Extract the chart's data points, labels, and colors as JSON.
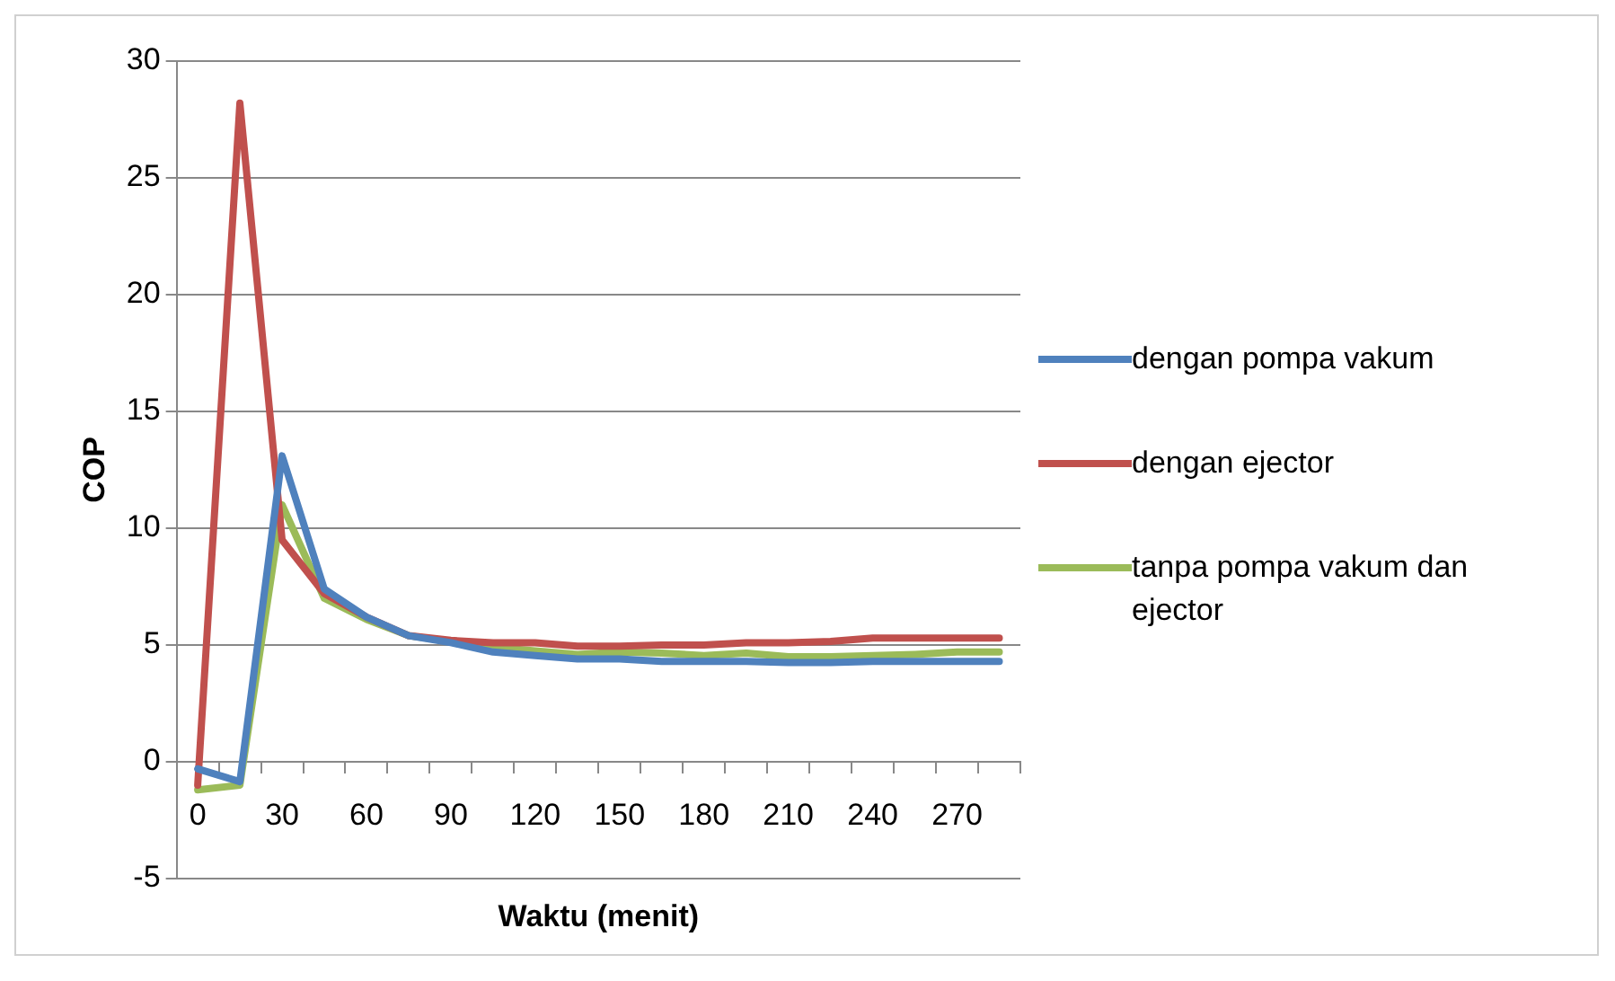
{
  "chart_data": {
    "type": "line",
    "xlabel": "Waktu (menit)",
    "ylabel": "COP",
    "categories": [
      "0",
      null,
      "30",
      null,
      "60",
      null,
      "90",
      null,
      "120",
      null,
      "150",
      null,
      "180",
      null,
      "210",
      null,
      "240",
      null,
      "270",
      null
    ],
    "series": [
      {
        "name": "dengan pompa vakum",
        "color": "#4f81bd",
        "values": [
          -0.3,
          -0.85,
          13.1,
          7.4,
          6.2,
          5.4,
          5.1,
          4.7,
          4.55,
          4.4,
          4.4,
          4.3,
          4.3,
          4.3,
          4.25,
          4.25,
          4.3,
          4.3,
          4.3,
          4.3
        ]
      },
      {
        "name": "dengan ejector",
        "color": "#c0504d",
        "values": [
          -1.0,
          28.2,
          9.5,
          7.2,
          6.2,
          5.4,
          5.2,
          5.1,
          5.1,
          4.95,
          4.95,
          5.0,
          5.0,
          5.1,
          5.1,
          5.15,
          5.3,
          5.3,
          5.3,
          5.3
        ]
      },
      {
        "name": "tanpa pompa vakum dan ejector",
        "color": "#9bbb59",
        "values": [
          -1.2,
          -1.0,
          11.0,
          7.0,
          6.1,
          5.4,
          5.15,
          4.9,
          4.75,
          4.6,
          4.7,
          4.65,
          4.55,
          4.65,
          4.5,
          4.5,
          4.55,
          4.6,
          4.7,
          4.7
        ]
      }
    ],
    "ylim": [
      -5,
      30
    ],
    "yticks": [
      -5,
      0,
      5,
      10,
      15,
      20,
      25,
      30
    ],
    "grid": "y",
    "legend": "right",
    "marker": "none",
    "line_style": "solid"
  }
}
